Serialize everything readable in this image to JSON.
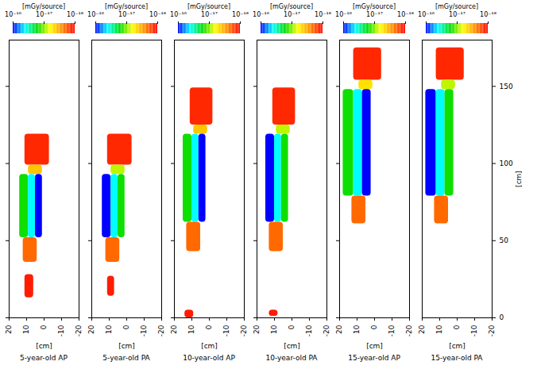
{
  "chart_data": [
    {
      "type": "heatmap",
      "title": "5-year-old AP",
      "xlabel": "[cm]",
      "xlim": [
        20,
        -20
      ],
      "ylim": [
        0,
        180
      ],
      "xticks": [
        20,
        10,
        0,
        -10,
        -20
      ],
      "yticks": [
        0,
        50,
        100,
        150
      ],
      "tick_labels": "x",
      "colorbar": {
        "label": "[mGy/source]",
        "range": [
          1e-16,
          1e-18
        ],
        "ticks": [
          {
            "value": 1e-16,
            "label": "10⁻¹⁶"
          },
          {
            "value": 1e-17,
            "label": "10⁻¹⁷"
          },
          {
            "value": 1e-18,
            "label": "10⁻¹⁸"
          }
        ]
      },
      "regions": [
        {
          "x1": 11,
          "x2": -3,
          "y1": 99,
          "y2": 119,
          "dose": 1.3e-18
        },
        {
          "x1": 9,
          "x2": 1,
          "y1": 93,
          "y2": 99,
          "dose": 4e-18
        },
        {
          "x1": 14,
          "x2": 9,
          "y1": 52,
          "y2": 93,
          "dose": 1.5e-17
        },
        {
          "x1": 9,
          "x2": 5,
          "y1": 52,
          "y2": 93,
          "dose": 4e-17
        },
        {
          "x1": 5,
          "x2": 1,
          "y1": 52,
          "y2": 93,
          "dose": 1e-16
        },
        {
          "x1": 12,
          "x2": 4,
          "y1": 36,
          "y2": 52,
          "dose": 2e-18
        },
        {
          "x1": 11,
          "x2": 6,
          "y1": 13,
          "y2": 28,
          "dose": 1.2e-18
        }
      ]
    },
    {
      "type": "heatmap",
      "title": "5-year-old PA",
      "xlabel": "[cm]",
      "xlim": [
        20,
        -20
      ],
      "ylim": [
        0,
        180
      ],
      "xticks": [
        20,
        10,
        0,
        -10,
        -20
      ],
      "yticks": [
        0,
        50,
        100,
        150
      ],
      "tick_labels": "x",
      "colorbar": {
        "label": "[mGy/source]",
        "range": [
          1e-16,
          1e-18
        ],
        "ticks": [
          {
            "value": 1e-16,
            "label": "10⁻¹⁶"
          },
          {
            "value": 1e-17,
            "label": "10⁻¹⁷"
          },
          {
            "value": 1e-18,
            "label": "10⁻¹⁸"
          }
        ]
      },
      "regions": [
        {
          "x1": 11,
          "x2": -3,
          "y1": 99,
          "y2": 119,
          "dose": 1.3e-18
        },
        {
          "x1": 9,
          "x2": 1,
          "y1": 93,
          "y2": 99,
          "dose": 8e-18
        },
        {
          "x1": 14,
          "x2": 9,
          "y1": 52,
          "y2": 93,
          "dose": 1e-16
        },
        {
          "x1": 9,
          "x2": 5,
          "y1": 52,
          "y2": 93,
          "dose": 4e-17
        },
        {
          "x1": 5,
          "x2": 1,
          "y1": 52,
          "y2": 93,
          "dose": 1.5e-17
        },
        {
          "x1": 12,
          "x2": 4,
          "y1": 36,
          "y2": 52,
          "dose": 2e-18
        },
        {
          "x1": 11,
          "x2": 7,
          "y1": 14,
          "y2": 27,
          "dose": 1.2e-18
        }
      ]
    },
    {
      "type": "heatmap",
      "title": "10-year-old AP",
      "xlabel": "[cm]",
      "xlim": [
        20,
        -20
      ],
      "ylim": [
        0,
        180
      ],
      "xticks": [
        20,
        10,
        0,
        -10,
        -20
      ],
      "yticks": [
        0,
        50,
        100,
        150
      ],
      "tick_labels": "x",
      "colorbar": {
        "label": "[mGy/source]",
        "range": [
          1e-16,
          1e-18
        ],
        "ticks": [
          {
            "value": 1e-16,
            "label": "10⁻¹⁶"
          },
          {
            "value": 1e-17,
            "label": "10⁻¹⁷"
          },
          {
            "value": 1e-18,
            "label": "10⁻¹⁸"
          }
        ]
      },
      "regions": [
        {
          "x1": 11,
          "x2": -2,
          "y1": 125,
          "y2": 149,
          "dose": 1.3e-18
        },
        {
          "x1": 9,
          "x2": 1,
          "y1": 119,
          "y2": 125,
          "dose": 4e-18
        },
        {
          "x1": 15,
          "x2": 10,
          "y1": 62,
          "y2": 119,
          "dose": 1.5e-17
        },
        {
          "x1": 10,
          "x2": 6,
          "y1": 62,
          "y2": 119,
          "dose": 4e-17
        },
        {
          "x1": 6,
          "x2": 2,
          "y1": 62,
          "y2": 119,
          "dose": 1e-16
        },
        {
          "x1": 13,
          "x2": 5,
          "y1": 43,
          "y2": 62,
          "dose": 2e-18
        },
        {
          "x1": 14,
          "x2": 9,
          "y1": 0,
          "y2": 5,
          "dose": 1.2e-18
        }
      ]
    },
    {
      "type": "heatmap",
      "title": "10-year-old PA",
      "xlabel": "[cm]",
      "xlim": [
        20,
        -20
      ],
      "ylim": [
        0,
        180
      ],
      "xticks": [
        20,
        10,
        0,
        -10,
        -20
      ],
      "yticks": [
        0,
        50,
        100,
        150
      ],
      "tick_labels": "x",
      "colorbar": {
        "label": "[mGy/source]",
        "range": [
          1e-16,
          1e-18
        ],
        "ticks": [
          {
            "value": 1e-16,
            "label": "10⁻¹⁶"
          },
          {
            "value": 1e-17,
            "label": "10⁻¹⁷"
          },
          {
            "value": 1e-18,
            "label": "10⁻¹⁸"
          }
        ]
      },
      "regions": [
        {
          "x1": 11,
          "x2": -2,
          "y1": 125,
          "y2": 149,
          "dose": 1.3e-18
        },
        {
          "x1": 9,
          "x2": 1,
          "y1": 119,
          "y2": 125,
          "dose": 8e-18
        },
        {
          "x1": 15,
          "x2": 10,
          "y1": 62,
          "y2": 119,
          "dose": 1e-16
        },
        {
          "x1": 10,
          "x2": 6,
          "y1": 62,
          "y2": 119,
          "dose": 4e-17
        },
        {
          "x1": 6,
          "x2": 2,
          "y1": 62,
          "y2": 119,
          "dose": 1.5e-17
        },
        {
          "x1": 13,
          "x2": 5,
          "y1": 43,
          "y2": 62,
          "dose": 2e-18
        },
        {
          "x1": 13,
          "x2": 8,
          "y1": 1,
          "y2": 5,
          "dose": 1.2e-18
        }
      ]
    },
    {
      "type": "heatmap",
      "title": "15-year-old AP",
      "xlabel": "[cm]",
      "xlim": [
        20,
        -20
      ],
      "ylim": [
        0,
        180
      ],
      "xticks": [
        20,
        10,
        0,
        -10,
        -20
      ],
      "yticks": [
        0,
        50,
        100,
        150
      ],
      "tick_labels": "x",
      "colorbar": {
        "label": "[mGy/source]",
        "range": [
          1e-16,
          1e-18
        ],
        "ticks": [
          {
            "value": 1e-16,
            "label": "10⁻¹⁶"
          },
          {
            "value": 1e-17,
            "label": "10⁻¹⁷"
          },
          {
            "value": 1e-18,
            "label": "10⁻¹⁸"
          }
        ]
      },
      "regions": [
        {
          "x1": 12,
          "x2": -4,
          "y1": 154,
          "y2": 175,
          "dose": 1.3e-18
        },
        {
          "x1": 9,
          "x2": 1,
          "y1": 148,
          "y2": 154,
          "dose": 5e-18
        },
        {
          "x1": 18,
          "x2": 12,
          "y1": 79,
          "y2": 148,
          "dose": 1.5e-17
        },
        {
          "x1": 12,
          "x2": 7,
          "y1": 79,
          "y2": 148,
          "dose": 4e-17
        },
        {
          "x1": 7,
          "x2": 2,
          "y1": 79,
          "y2": 148,
          "dose": 1e-16
        },
        {
          "x1": 13,
          "x2": 5,
          "y1": 61,
          "y2": 79,
          "dose": 2e-18
        }
      ]
    },
    {
      "type": "heatmap",
      "title": "15-year-old PA",
      "xlabel": "[cm]",
      "ylabel": "[cm]",
      "xlim": [
        20,
        -20
      ],
      "ylim": [
        0,
        180
      ],
      "xticks": [
        20,
        10,
        0,
        -10,
        -20
      ],
      "yticks": [
        0,
        50,
        100,
        150
      ],
      "colorbar": {
        "label": "[mGy/source]",
        "range": [
          1e-16,
          1e-18
        ],
        "ticks": [
          {
            "value": 1e-16,
            "label": "10⁻¹⁶"
          },
          {
            "value": 1e-17,
            "label": "10⁻¹⁷"
          },
          {
            "value": 1e-18,
            "label": "10⁻¹⁸"
          }
        ]
      },
      "regions": [
        {
          "x1": 12,
          "x2": -4,
          "y1": 154,
          "y2": 175,
          "dose": 1.3e-18
        },
        {
          "x1": 9,
          "x2": 1,
          "y1": 148,
          "y2": 154,
          "dose": 8e-18
        },
        {
          "x1": 18,
          "x2": 12,
          "y1": 79,
          "y2": 148,
          "dose": 1e-16
        },
        {
          "x1": 12,
          "x2": 7,
          "y1": 79,
          "y2": 148,
          "dose": 4e-17
        },
        {
          "x1": 7,
          "x2": 2,
          "y1": 79,
          "y2": 148,
          "dose": 1.5e-17
        },
        {
          "x1": 13,
          "x2": 5,
          "y1": 61,
          "y2": 79,
          "dose": 2e-18
        }
      ]
    }
  ]
}
